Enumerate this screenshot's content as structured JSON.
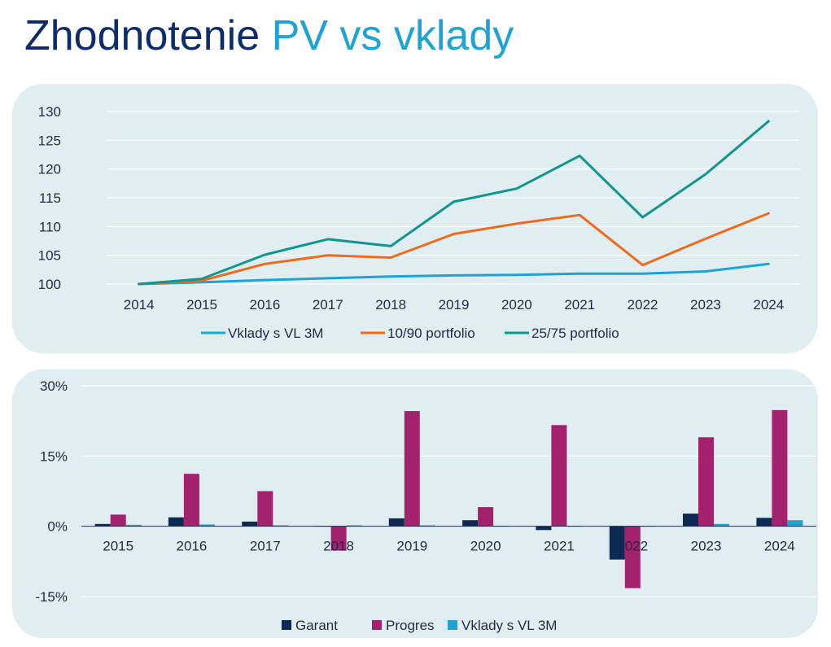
{
  "title": {
    "part1": "Zhodnotenie",
    "part2": "PV vs vklady"
  },
  "colors": {
    "title_dark": "#0d2c6c",
    "title_accent": "#1fa3d4",
    "panel_bg": "#e0eef2"
  },
  "chart_data": [
    {
      "type": "line",
      "title": "",
      "xlabel": "",
      "ylabel": "",
      "x": [
        "2014",
        "2015",
        "2016",
        "2017",
        "2018",
        "2019",
        "2020",
        "2021",
        "2022",
        "2023",
        "2024"
      ],
      "ylim": [
        100,
        130
      ],
      "yticks": [
        100,
        105,
        110,
        115,
        120,
        125,
        130
      ],
      "grid": true,
      "legend": "bottom",
      "series": [
        {
          "name": "Vklady s VL 3M",
          "color": "#1fa3d4",
          "values": [
            100,
            100.3,
            100.7,
            101,
            101.3,
            101.5,
            101.6,
            101.8,
            101.8,
            102.2,
            103.5
          ]
        },
        {
          "name": "10/90 portfolio",
          "color": "#f06a1c",
          "values": [
            100,
            100.6,
            103.5,
            105,
            104.6,
            108.7,
            110.5,
            112,
            103.3,
            107.9,
            112.3
          ]
        },
        {
          "name": "25/75 portfolio",
          "color": "#10968e",
          "values": [
            100,
            100.9,
            105.1,
            107.8,
            106.6,
            114.3,
            116.6,
            122.3,
            111.6,
            119.1,
            128.3
          ]
        }
      ]
    },
    {
      "type": "bar",
      "title": "",
      "xlabel": "",
      "ylabel": "",
      "categories": [
        "2015",
        "2016",
        "2017",
        "2018",
        "2019",
        "2020",
        "2021",
        "2022",
        "2023",
        "2024"
      ],
      "ylim": [
        -15,
        30
      ],
      "yticks": [
        -15,
        0,
        15,
        30
      ],
      "ytick_labels": [
        "-15%",
        "0%",
        "15%",
        "30%"
      ],
      "grid": true,
      "legend": "bottom",
      "series": [
        {
          "name": "Garant",
          "color": "#0d2a55",
          "values": [
            0.5,
            1.9,
            1.0,
            0.1,
            1.7,
            1.3,
            -0.8,
            -7.1,
            2.7,
            1.8
          ]
        },
        {
          "name": "Progres",
          "color": "#a3226e",
          "values": [
            2.5,
            11.2,
            7.5,
            -5.2,
            24.6,
            4.1,
            21.6,
            -13.2,
            19.0,
            24.8
          ]
        },
        {
          "name": "Vklady s VL 3M",
          "color": "#1fa3d4",
          "values": [
            0.3,
            0.4,
            0.2,
            0.2,
            0.2,
            0.1,
            0.1,
            0.1,
            0.5,
            1.3
          ]
        }
      ]
    }
  ]
}
